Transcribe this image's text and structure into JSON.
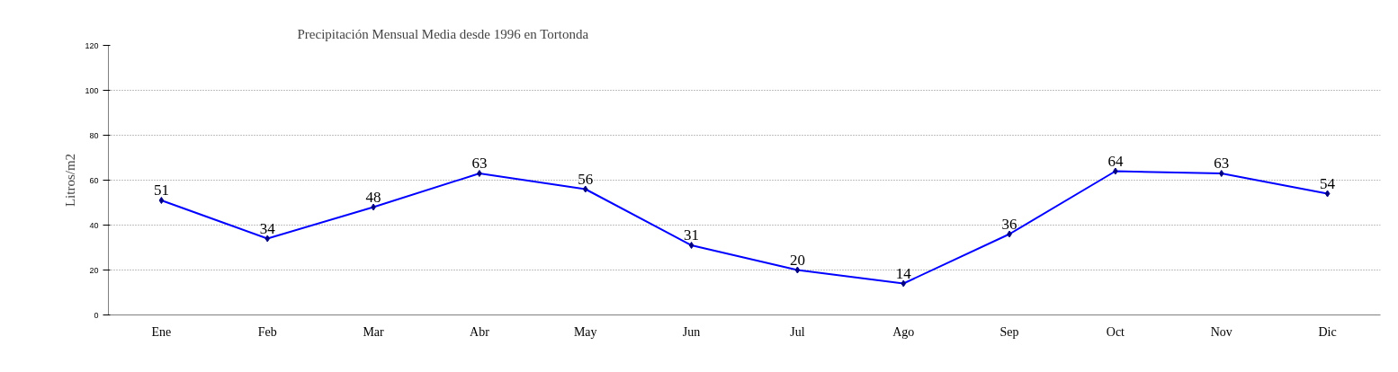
{
  "chart_data": {
    "type": "line",
    "title": "Precipitación  Mensual Media desde 1996 en Tortonda",
    "ylabel": "Litros/m2",
    "categories": [
      "Ene",
      "Feb",
      "Mar",
      "Abr",
      "May",
      "Jun",
      "Jul",
      "Ago",
      "Sep",
      "Oct",
      "Nov",
      "Dic"
    ],
    "series": [
      {
        "color": "#0000ff",
        "values": [
          51,
          34,
          48,
          63,
          56,
          31,
          20,
          14,
          36,
          64,
          63,
          54
        ]
      }
    ],
    "ylim": [
      0,
      120
    ],
    "yticks": [
      0,
      20,
      40,
      60,
      80,
      100,
      120
    ],
    "grid": "y",
    "marker": "diamond",
    "data_labels": true
  }
}
